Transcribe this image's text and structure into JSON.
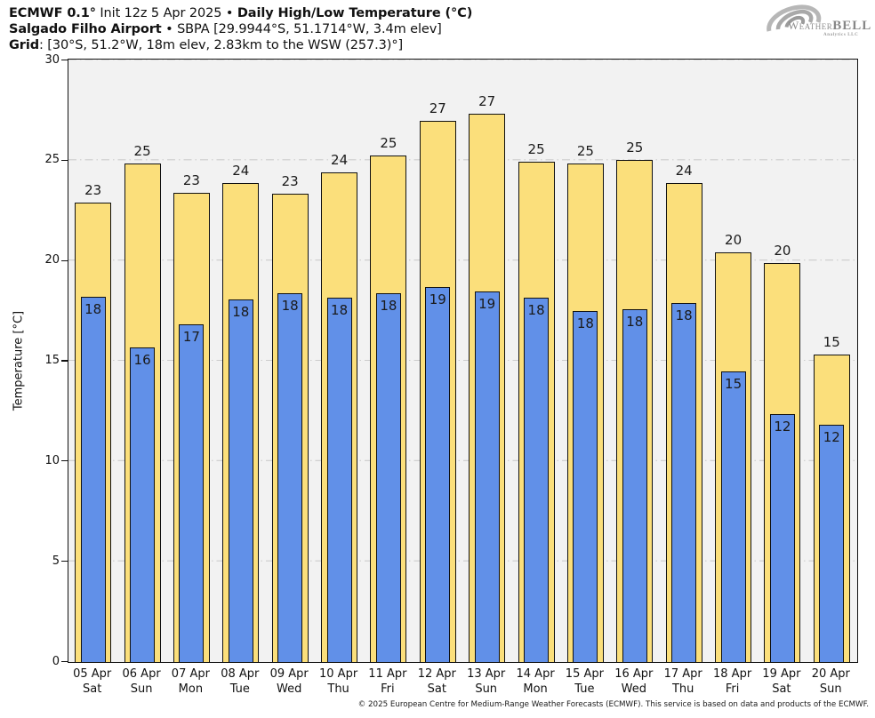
{
  "header": {
    "line1_bold1": "ECMWF 0.1°",
    "line1_mid": " Init 12z 5 Apr 2025 • ",
    "line1_bold2": "Daily High/Low Temperature (°C)",
    "line2_bold": "Salgado Filho Airport",
    "line2_rest": " • SBPA [29.9944°S, 51.1714°W, 3.4m elev]",
    "line3_bold": "Grid",
    "line3_rest": ": [30°S, 51.2°W, 18m elev, 2.83km to the WSW (257.3)°]"
  },
  "logo": {
    "brand_weather": "Weather",
    "brand_bell": "BELL",
    "subtitle": "Analytics LLC"
  },
  "footer": {
    "copyright": "© 2025 European Centre for Medium-Range Weather Forecasts (ECMWF). This service is based on data and products of the ECMWF."
  },
  "chart_data": {
    "type": "bar",
    "title": "ECMWF 0.1° Init 12z 5 Apr 2025 • Daily High/Low Temperature (°C)",
    "subtitle": "Salgado Filho Airport • SBPA [29.9944°S, 51.1714°W, 3.4m elev]",
    "grid_info": "Grid: [30°S, 51.2°W, 18m elev, 2.83km to the WSW (257.3)°]",
    "xlabel": "",
    "ylabel": "Temperature [°C]",
    "ylim": [
      0,
      30
    ],
    "y_ticks": [
      0,
      5,
      10,
      15,
      20,
      25,
      30
    ],
    "gridlines": [
      5,
      10,
      15,
      20,
      25,
      30
    ],
    "grid_style": "dash-dot",
    "legend_position": "none",
    "plot_bg_color": "#f2f2f2",
    "grid_color": "#cccccc",
    "categories": [
      {
        "date": "05 Apr",
        "day": "Sat"
      },
      {
        "date": "06 Apr",
        "day": "Sun"
      },
      {
        "date": "07 Apr",
        "day": "Mon"
      },
      {
        "date": "08 Apr",
        "day": "Tue"
      },
      {
        "date": "09 Apr",
        "day": "Wed"
      },
      {
        "date": "10 Apr",
        "day": "Thu"
      },
      {
        "date": "11 Apr",
        "day": "Fri"
      },
      {
        "date": "12 Apr",
        "day": "Sat"
      },
      {
        "date": "13 Apr",
        "day": "Sun"
      },
      {
        "date": "14 Apr",
        "day": "Mon"
      },
      {
        "date": "15 Apr",
        "day": "Tue"
      },
      {
        "date": "16 Apr",
        "day": "Wed"
      },
      {
        "date": "17 Apr",
        "day": "Thu"
      },
      {
        "date": "18 Apr",
        "day": "Fri"
      },
      {
        "date": "19 Apr",
        "day": "Sat"
      },
      {
        "date": "20 Apr",
        "day": "Sun"
      }
    ],
    "series": [
      {
        "name": "Daily High",
        "color": "#fbdf7b",
        "labels": [
          "23",
          "25",
          "23",
          "24",
          "23",
          "24",
          "25",
          "27",
          "27",
          "25",
          "25",
          "25",
          "24",
          "20",
          "20",
          "15"
        ],
        "values": [
          22.9,
          24.85,
          23.4,
          23.9,
          23.35,
          24.4,
          25.25,
          27.0,
          27.35,
          24.95,
          24.85,
          25.05,
          23.9,
          20.45,
          19.9,
          15.35
        ]
      },
      {
        "name": "Daily Low",
        "color": "#6190e8",
        "labels": [
          "18",
          "16",
          "17",
          "18",
          "18",
          "18",
          "18",
          "19",
          "19",
          "18",
          "18",
          "18",
          "18",
          "15",
          "12",
          "12"
        ],
        "values": [
          18.2,
          15.7,
          16.85,
          18.1,
          18.4,
          18.15,
          18.4,
          18.7,
          18.5,
          18.15,
          17.5,
          17.6,
          17.9,
          14.5,
          12.35,
          11.85
        ]
      }
    ]
  }
}
